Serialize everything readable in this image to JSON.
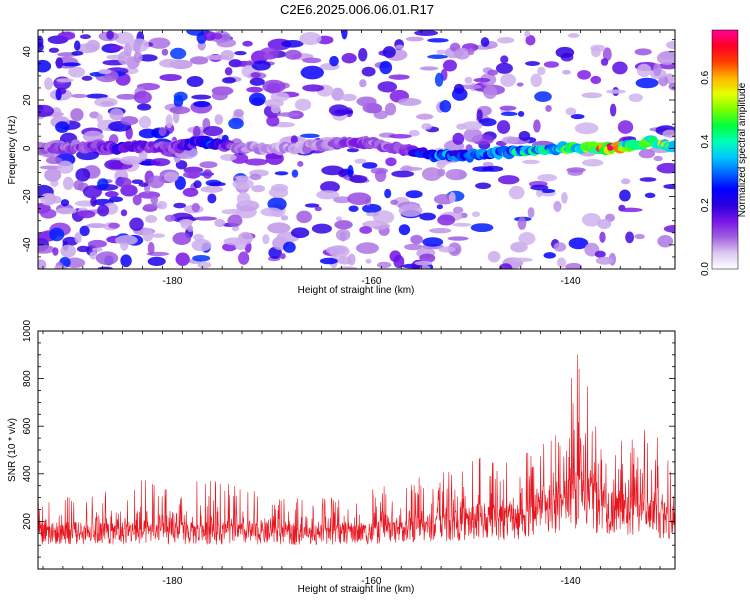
{
  "title": "C2E6.2025.006.06.01.R17",
  "chart_data": [
    {
      "type": "heatmap",
      "xlabel": "Height of straight line (km)",
      "ylabel": "Frequency (Hz)",
      "xlim": [
        -193.5,
        -129.5
      ],
      "ylim": [
        -50,
        49
      ],
      "xticks": [
        -180,
        -160,
        -140
      ],
      "yticks": [
        -40,
        -20,
        0,
        20,
        40
      ],
      "colorbar": {
        "label": "Normalized spectral amplitude",
        "range": [
          0.0,
          0.75
        ],
        "ticks": [
          0.0,
          0.2,
          0.4,
          0.6
        ],
        "colors": [
          "#ffffff",
          "#dcc8f0",
          "#a060e0",
          "#7a14e6",
          "#2a00e0",
          "#0000ff",
          "#0064ff",
          "#00c8ff",
          "#00ffb4",
          "#00ff3c",
          "#7cff00",
          "#e6ff00",
          "#ffb400",
          "#ff3c00",
          "#ff0028",
          "#ff0096"
        ]
      },
      "description_trace": {
        "type": "line",
        "x": [
          -193,
          -188,
          -185,
          -183,
          -180,
          -177,
          -176,
          -174,
          -170,
          -165,
          -162,
          -160,
          -157,
          -155,
          -153,
          -150,
          -147,
          -145,
          -142,
          -140,
          -138,
          -136,
          -134,
          -132,
          -130
        ],
        "y": [
          0,
          1,
          0,
          1,
          0,
          3,
          2,
          0,
          0,
          1,
          3,
          2,
          0,
          -2,
          -3,
          -3,
          -2,
          -1,
          0,
          0,
          0,
          0,
          1,
          3,
          1
        ],
        "amplitude": [
          0.12,
          0.15,
          0.22,
          0.18,
          0.14,
          0.25,
          0.32,
          0.12,
          0.08,
          0.1,
          0.15,
          0.13,
          0.12,
          0.28,
          0.35,
          0.3,
          0.38,
          0.4,
          0.45,
          0.5,
          0.55,
          0.72,
          0.5,
          0.58,
          0.52
        ]
      }
    },
    {
      "type": "line",
      "xlabel": "Height of straight line (km)",
      "ylabel": "SNR (10 * v/v)",
      "xlim": [
        -193.5,
        -129.5
      ],
      "ylim": [
        0,
        1000
      ],
      "xticks": [
        -180,
        -160,
        -140
      ],
      "yticks": [
        200,
        400,
        600,
        800,
        1000
      ],
      "series": [
        {
          "color": "#e8141e",
          "envelope": {
            "x": [
              -193.5,
              -190,
              -186,
              -183,
              -180,
              -177,
              -175,
              -172,
              -168,
              -165,
              -162,
              -160,
              -157,
              -155,
              -153,
              -151,
              -149,
              -147,
              -145,
              -143,
              -141,
              -140,
              -139,
              -138,
              -137,
              -136,
              -135,
              -134,
              -133,
              -132,
              -131,
              -130,
              -129.5
            ],
            "peak": [
              300,
              320,
              340,
              380,
              340,
              420,
              380,
              330,
              300,
              300,
              320,
              340,
              360,
              400,
              440,
              420,
              480,
              440,
              500,
              520,
              600,
              850,
              950,
              750,
              800,
              650,
              600,
              550,
              680,
              560,
              560,
              480,
              620
            ],
            "base": [
              90,
              90,
              90,
              90,
              90,
              90,
              90,
              90,
              90,
              90,
              90,
              90,
              100,
              100,
              100,
              100,
              100,
              100,
              100,
              100,
              120,
              120,
              120,
              120,
              120,
              120,
              120,
              120,
              120,
              120,
              110,
              110,
              110
            ],
            "median": [
              150,
              150,
              150,
              155,
              150,
              150,
              150,
              150,
              145,
              145,
              150,
              150,
              160,
              170,
              180,
              190,
              200,
              200,
              210,
              220,
              260,
              300,
              320,
              280,
              270,
              250,
              240,
              230,
              240,
              220,
              210,
              200,
              200
            ]
          }
        }
      ]
    }
  ]
}
